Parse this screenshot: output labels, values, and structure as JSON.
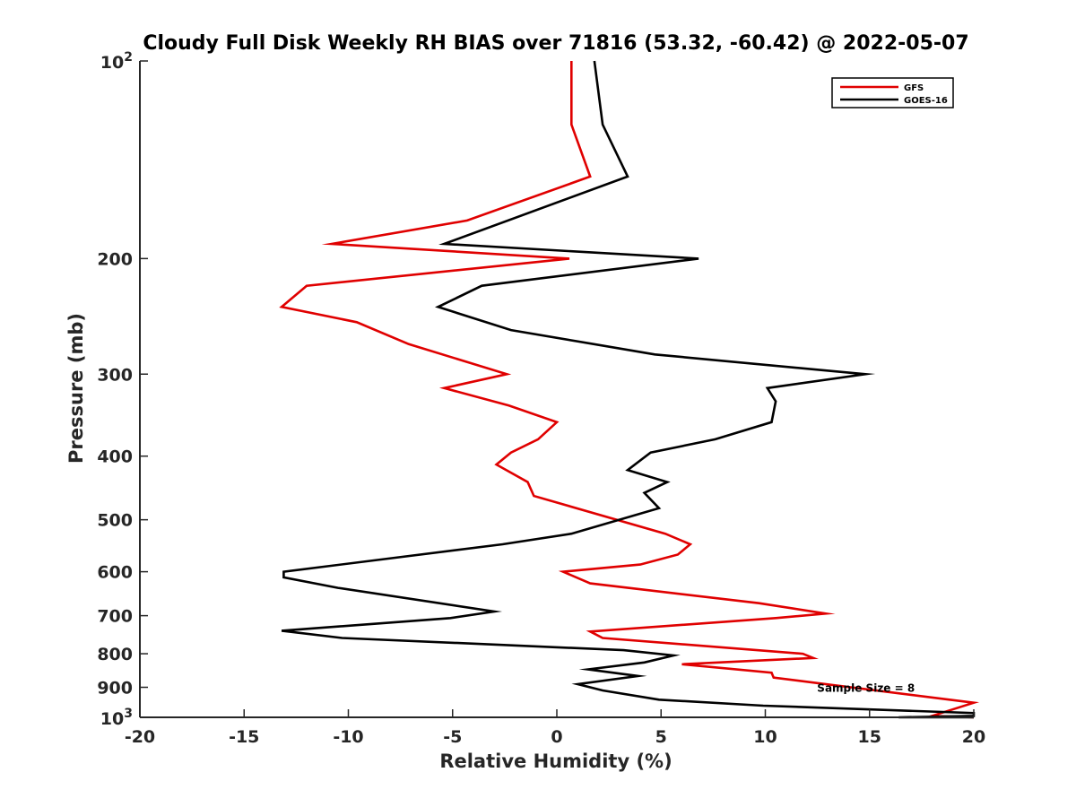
{
  "chart_data": {
    "type": "line",
    "title": "Cloudy Full Disk Weekly RH BIAS over 71816 (53.32, -60.42) @ 2022-05-07",
    "xlabel": "Relative Humidity (%)",
    "ylabel": "Pressure (mb)",
    "xlim": [
      -20,
      20
    ],
    "ylim": [
      100,
      1000
    ],
    "y_scale": "log",
    "y_reversed": true,
    "x_ticks": [
      -20,
      -15,
      -10,
      -5,
      0,
      5,
      10,
      15,
      20
    ],
    "x_tick_labels": [
      "-20",
      "-15",
      "-10",
      "-5",
      "0",
      "5",
      "10",
      "15",
      "20"
    ],
    "y_ticks": [
      100,
      200,
      300,
      400,
      500,
      600,
      700,
      800,
      900,
      1000
    ],
    "y_tick_labels": [
      "",
      "200",
      "300",
      "400",
      "500",
      "600",
      "700",
      "800",
      "900",
      ""
    ],
    "y_end_labels": [
      {
        "value": 100,
        "base": "10",
        "exp": "2"
      },
      {
        "value": 1000,
        "base": "10",
        "exp": "3"
      }
    ],
    "grid": false,
    "legend_position": "top-right",
    "annotations": [
      {
        "text": "Sample Size = 8",
        "x": 12.4,
        "y": 900
      }
    ],
    "series": [
      {
        "name": "GFS",
        "color": "#e00000",
        "x": [
          0.7,
          0.7,
          1.6,
          -4.3,
          -10.8,
          0.6,
          -12,
          -13.2,
          -9.6,
          -7.1,
          -2.4,
          -5.4,
          -2.3,
          0,
          -0.9,
          -2.2,
          -2.9,
          -1.4,
          -1.1,
          5.2,
          6.4,
          5.8,
          4,
          0.3,
          1.6,
          9.7,
          12.9,
          10.5,
          1.6,
          2.2,
          11.8,
          12.3,
          6,
          10.3,
          10.4,
          20,
          18,
          20
        ],
        "y": [
          100,
          125,
          150,
          175,
          190,
          200,
          220,
          237,
          250,
          270,
          300,
          315,
          335,
          355,
          377,
          395,
          412,
          438,
          460,
          525,
          545,
          565,
          585,
          600,
          625,
          670,
          695,
          706,
          740,
          757,
          800,
          812,
          830,
          855,
          870,
          950,
          995,
          1000
        ]
      },
      {
        "name": "GOES-16",
        "color": "#000000",
        "x": [
          1.8,
          2.2,
          3.4,
          -5.4,
          6.8,
          -3.6,
          -5.7,
          -2.2,
          4.7,
          14.8,
          10.1,
          10.5,
          10.3,
          7.6,
          4.5,
          3.4,
          5.3,
          4.2,
          4.9,
          0.7,
          -2.6,
          -13.1,
          -13.1,
          -10.5,
          -3,
          -5.1,
          -13.2,
          -10.3,
          3.2,
          5.6,
          4.2,
          1.5,
          3.9,
          1,
          2.2,
          4.9,
          9.9,
          20,
          20,
          16.4,
          20
        ],
        "y": [
          100,
          125,
          150,
          190,
          200,
          220,
          237,
          257,
          280,
          300,
          315,
          330,
          355,
          377,
          395,
          420,
          438,
          455,
          480,
          525,
          545,
          600,
          612,
          635,
          690,
          706,
          738,
          757,
          790,
          805,
          825,
          845,
          865,
          890,
          910,
          940,
          960,
          985,
          995,
          1000,
          1000
        ]
      }
    ]
  }
}
